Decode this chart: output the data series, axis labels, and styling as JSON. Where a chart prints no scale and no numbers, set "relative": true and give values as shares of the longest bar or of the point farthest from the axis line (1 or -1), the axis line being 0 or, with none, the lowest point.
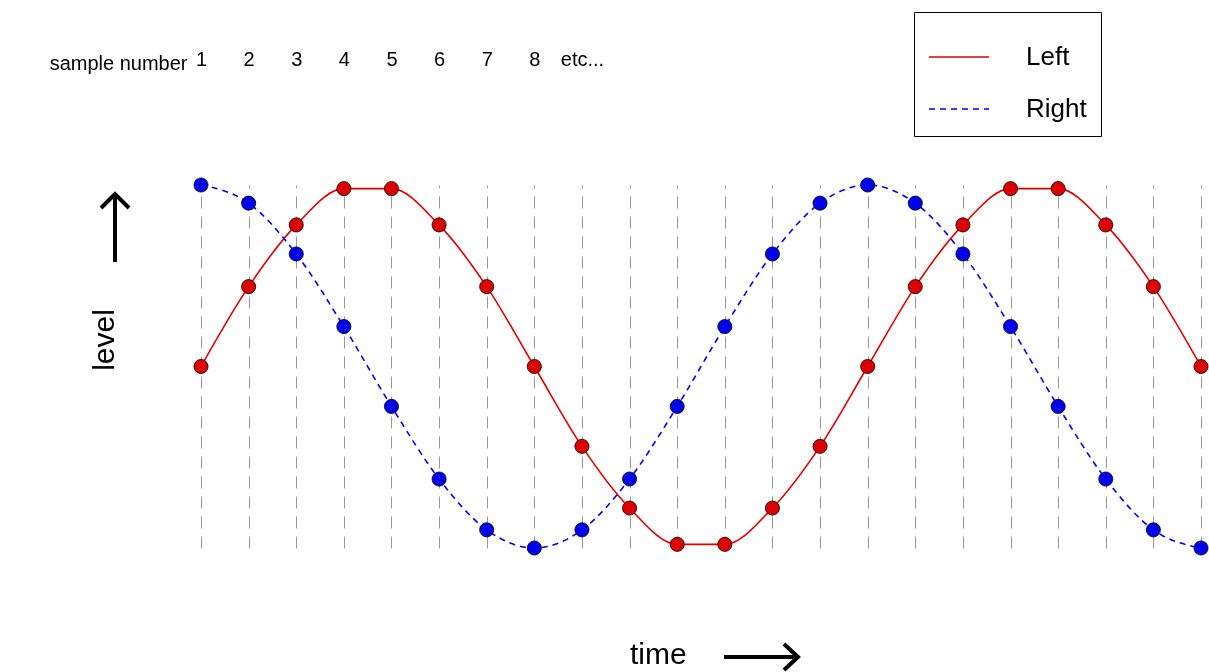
{
  "chart_data": {
    "type": "line",
    "xlabel": "time",
    "ylabel": "level",
    "relative": true,
    "annotations": [
      "sample number"
    ],
    "categories": [
      "1",
      "2",
      "3",
      "4",
      "5",
      "6",
      "7",
      "8",
      "etc...",
      null,
      null,
      null,
      null,
      null,
      null,
      null,
      null,
      null,
      null,
      null,
      null,
      null
    ],
    "series": [
      {
        "name": "Left",
        "color": "#dd0000",
        "line_style": "solid",
        "values": [
          0.5,
          0.72,
          0.89,
          0.99,
          0.99,
          0.89,
          0.72,
          0.5,
          0.28,
          0.11,
          0.01,
          0.01,
          0.11,
          0.28,
          0.5,
          0.72,
          0.89,
          0.99,
          0.99,
          0.89,
          0.72,
          0.5
        ]
      },
      {
        "name": "Right",
        "color": "#0000ee",
        "line_style": "dashed",
        "values": [
          1,
          0.95,
          0.81,
          0.61,
          0.39,
          0.19,
          0.05,
          0,
          0.05,
          0.19,
          0.39,
          0.61,
          0.81,
          0.95,
          1,
          0.95,
          0.81,
          0.61,
          0.39,
          0.19,
          0.05,
          0
        ]
      }
    ],
    "marker": "circle",
    "grid": "x",
    "legend": "top right"
  }
}
